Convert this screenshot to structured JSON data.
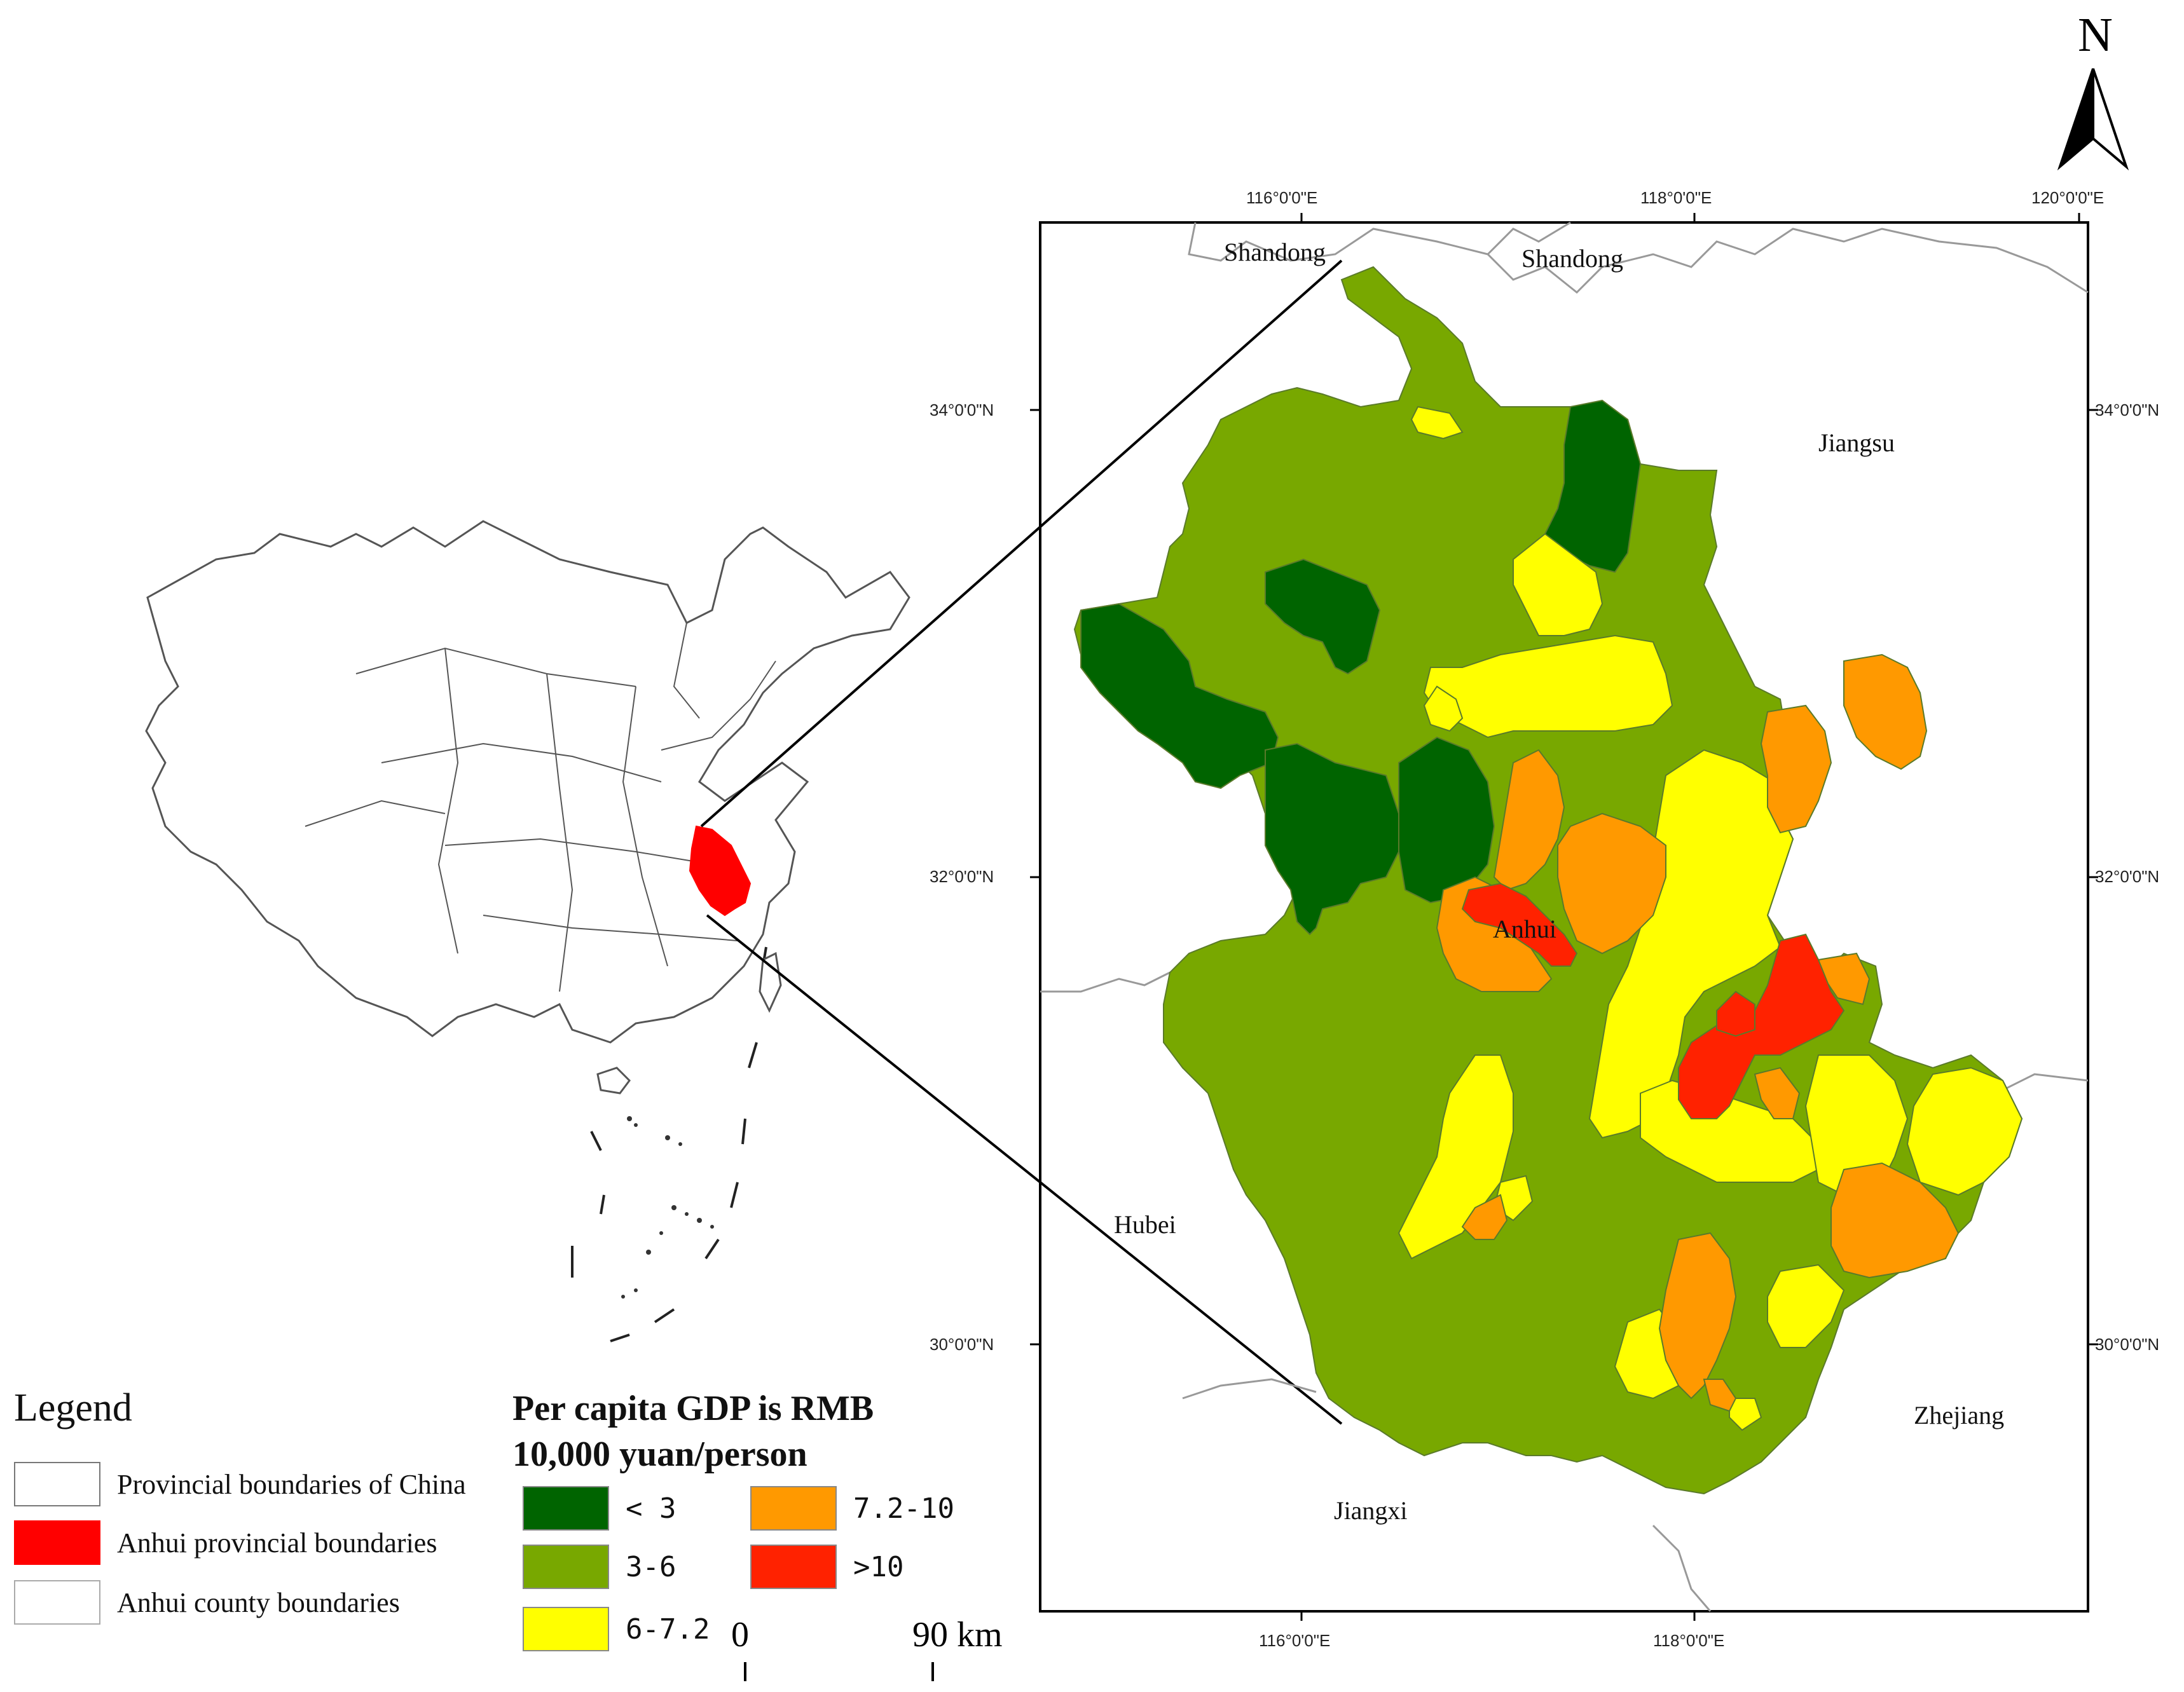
{
  "north_arrow": {
    "label": "N"
  },
  "coordinates": {
    "lon_top": [
      "116°0'0\"E",
      "118°0'0\"E",
      "120°0'0\"E"
    ],
    "lon_bottom": [
      "116°0'0\"E",
      "118°0'0\"E"
    ],
    "lat_left": [
      "34°0'0\"N",
      "32°0'0\"N",
      "30°0'0\"N"
    ],
    "lat_right": [
      "34°0'0\"N",
      "32°0'0\"N",
      "30°0'0\"N"
    ]
  },
  "provinces": {
    "shandong_left": "Shandong",
    "shandong_right": "Shandong",
    "jiangsu": "Jiangsu",
    "anhui": "Anhui",
    "hubei": "Hubei",
    "jiangxi": "Jiangxi",
    "zhejiang": "Zhejiang"
  },
  "legend": {
    "title": "Legend",
    "items": [
      {
        "label": "Provincial boundaries of China",
        "fill": "#ffffff",
        "stroke": "#777777"
      },
      {
        "label": "Anhui provincial boundaries",
        "fill": "#ff0000",
        "stroke": "#ff0000"
      },
      {
        "label": "Anhui county boundaries",
        "fill": "#ffffff",
        "stroke": "#aaaaaa"
      }
    ]
  },
  "gdp_legend": {
    "title_line1": "Per capita GDP is RMB",
    "title_line2": "10,000 yuan/person",
    "classes": [
      {
        "label": "< 3",
        "color": "#006400"
      },
      {
        "label": "3-6",
        "color": "#78A800"
      },
      {
        "label": "6-7.2",
        "color": "#FFFF00"
      },
      {
        "label": "7.2-10",
        "color": "#FF9900"
      },
      {
        "label": ">10",
        "color": "#FF2200"
      }
    ]
  },
  "scale_bar": {
    "start": "0",
    "end": "90 km"
  },
  "colors": {
    "highlight": "#ff0000",
    "frame": "#000000"
  }
}
